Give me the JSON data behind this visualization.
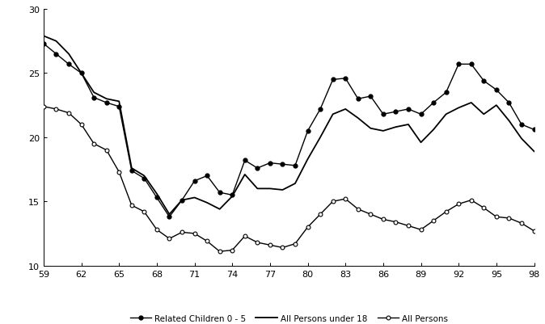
{
  "years": [
    59,
    60,
    61,
    62,
    63,
    64,
    65,
    66,
    67,
    68,
    69,
    70,
    71,
    72,
    73,
    74,
    75,
    76,
    77,
    78,
    79,
    80,
    81,
    82,
    83,
    84,
    85,
    86,
    87,
    88,
    89,
    90,
    91,
    92,
    93,
    94,
    95,
    96,
    97,
    98
  ],
  "related_children_0_5": [
    27.3,
    26.5,
    25.7,
    25.0,
    23.1,
    22.7,
    22.4,
    17.4,
    16.8,
    15.3,
    13.8,
    15.1,
    16.6,
    17.0,
    15.7,
    15.5,
    18.2,
    17.6,
    18.0,
    17.9,
    17.8,
    20.5,
    22.2,
    24.5,
    24.6,
    23.0,
    23.2,
    21.8,
    22.0,
    22.2,
    21.8,
    22.7,
    23.5,
    25.7,
    25.7,
    24.4,
    23.7,
    22.7,
    21.0,
    20.6
  ],
  "all_persons_under_18": [
    27.9,
    27.5,
    26.5,
    25.0,
    23.5,
    23.0,
    22.8,
    17.6,
    17.0,
    15.6,
    14.0,
    15.1,
    15.3,
    14.9,
    14.4,
    15.4,
    17.1,
    16.0,
    16.0,
    15.9,
    16.4,
    18.3,
    20.0,
    21.8,
    22.2,
    21.5,
    20.7,
    20.5,
    20.8,
    21.0,
    19.6,
    20.6,
    21.8,
    22.3,
    22.7,
    21.8,
    22.5,
    21.3,
    19.9,
    18.9
  ],
  "all_persons": [
    22.4,
    22.2,
    21.9,
    21.0,
    19.5,
    19.0,
    17.3,
    14.7,
    14.2,
    12.8,
    12.1,
    12.6,
    12.5,
    11.9,
    11.1,
    11.2,
    12.3,
    11.8,
    11.6,
    11.4,
    11.7,
    13.0,
    14.0,
    15.0,
    15.2,
    14.4,
    14.0,
    13.6,
    13.4,
    13.1,
    12.8,
    13.5,
    14.2,
    14.8,
    15.1,
    14.5,
    13.8,
    13.7,
    13.3,
    12.7
  ],
  "xticks": [
    59,
    62,
    65,
    68,
    71,
    74,
    77,
    80,
    83,
    86,
    89,
    92,
    95,
    98
  ],
  "yticks": [
    10,
    15,
    20,
    25,
    30
  ],
  "ylim": [
    10,
    30
  ],
  "xlim": [
    59,
    98
  ],
  "line_color": "#000000",
  "background_color": "#ffffff",
  "legend_labels": [
    "Related Children 0 - 5",
    "All Persons under 18",
    "All Persons"
  ]
}
